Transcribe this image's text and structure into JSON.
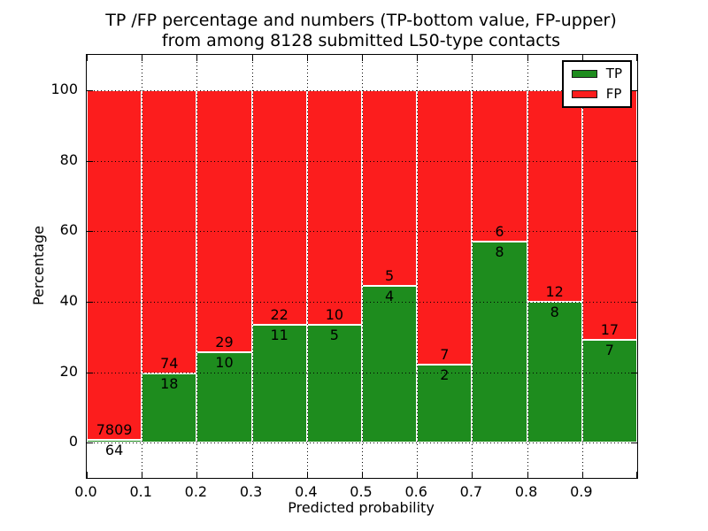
{
  "chart_data": {
    "type": "bar",
    "stacked": true,
    "normalized_to_100_percent": true,
    "title_lines": [
      "TP /FP percentage and numbers (TP-bottom value, FP-upper)",
      "from among 8128 submitted L50-type contacts"
    ],
    "title": "TP /FP percentage and numbers (TP-bottom value, FP-upper)\nfrom among 8128 submitted L50-type contacts",
    "xlabel": "Predicted probability",
    "ylabel": "Percentage",
    "xlim": [
      0,
      1
    ],
    "ylim": [
      -10,
      110
    ],
    "xticks": [
      "0.0",
      "0.1",
      "0.2",
      "0.3",
      "0.4",
      "0.5",
      "0.6",
      "0.7",
      "0.8",
      "0.9"
    ],
    "yticks": [
      0,
      20,
      40,
      60,
      80,
      100
    ],
    "grid": true,
    "grid_style": "dotted",
    "total_contacts_shown_in_title": 8128,
    "categories": [
      "0.0-0.1",
      "0.1-0.2",
      "0.2-0.3",
      "0.3-0.4",
      "0.4-0.5",
      "0.5-0.6",
      "0.6-0.7",
      "0.7-0.8",
      "0.8-0.9",
      "0.9-1.0"
    ],
    "series": [
      {
        "name": "TP",
        "counts": [
          64,
          18,
          10,
          11,
          5,
          4,
          2,
          8,
          8,
          7
        ]
      },
      {
        "name": "FP",
        "counts": [
          7809,
          74,
          29,
          22,
          10,
          5,
          7,
          6,
          12,
          17
        ]
      }
    ],
    "tp_percent_heights": [
      0.81,
      19.57,
      25.64,
      33.33,
      33.33,
      44.44,
      22.22,
      57.14,
      40.0,
      29.17
    ],
    "legend": {
      "position": "upper right",
      "entries": [
        {
          "label": "TP",
          "color": "#1e8c1e"
        },
        {
          "label": "FP",
          "color": "#fc1d1d"
        }
      ]
    }
  },
  "colors": {
    "tp": "#1e8c1e",
    "fp": "#fc1d1d",
    "text": "#000000",
    "grid": "#000000",
    "background": "#ffffff",
    "legend_border": "#000000"
  }
}
